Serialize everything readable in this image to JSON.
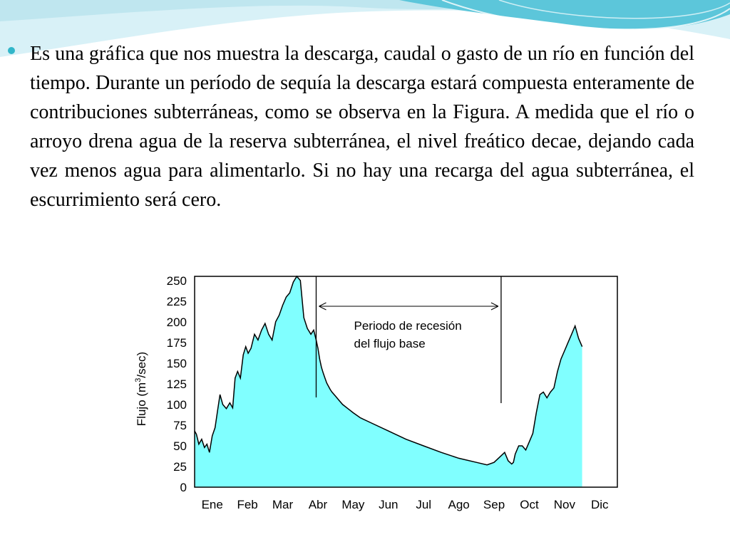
{
  "slide": {
    "theme_colors": {
      "wave_dark": "#5cc6da",
      "wave_light": "#cfeef5",
      "bullet": "#31b6c9"
    },
    "bullet_icon": "bullet-dot",
    "body_text": "Es una gráfica que nos muestra la descarga, caudal o gasto de un río en función del tiempo. Durante un período de sequía la descarga estará compuesta enteramente de contribuciones subterráneas, como se observa en la Figura. A medida que el río o arroyo drena agua de la reserva subterránea, el nivel freático decae, dejando cada vez menos agua para alimentarlo. Si no hay una recarga del agua subterránea, el escurrimiento será cero."
  },
  "chart_data": {
    "type": "area",
    "title": "",
    "ylabel_prefix": "Flujo (m",
    "ylabel_sup": "3",
    "ylabel_suffix": "/sec)",
    "xlabel": "",
    "categories": [
      "Ene",
      "Feb",
      "Mar",
      "Abr",
      "May",
      "Jun",
      "Jul",
      "Ago",
      "Sep",
      "Oct",
      "Nov",
      "Dic"
    ],
    "yticks": [
      0,
      25,
      50,
      75,
      100,
      125,
      150,
      175,
      200,
      225,
      250
    ],
    "ylim": [
      0,
      255
    ],
    "xlim": [
      0,
      12
    ],
    "fill_color": "#80ffff",
    "line_color": "#000000",
    "grid": false,
    "annotation_lines": [
      "Periodo de recesión",
      "del flujo base"
    ],
    "recession_period": {
      "start": 3.45,
      "end": 8.7
    },
    "series": [
      {
        "x": [
          0,
          0.05,
          0.12,
          0.2,
          0.28,
          0.35,
          0.42,
          0.5,
          0.58,
          0.65,
          0.72,
          0.8,
          0.9,
          1.0,
          1.08,
          1.15,
          1.22,
          1.3,
          1.38,
          1.45,
          1.52,
          1.6,
          1.7,
          1.8,
          1.9,
          2.0,
          2.1,
          2.2,
          2.3,
          2.4,
          2.5,
          2.6,
          2.7,
          2.8,
          2.9,
          3.0,
          3.1,
          3.2,
          3.3,
          3.38,
          3.45,
          3.5,
          3.55,
          3.6,
          3.65,
          3.7,
          3.75,
          3.8,
          3.85,
          3.9,
          4.0,
          4.1,
          4.2,
          4.35,
          4.5,
          4.7,
          5.0,
          5.5,
          6.0,
          6.5,
          7.0,
          7.5,
          8.0,
          8.3,
          8.5,
          8.7,
          8.8,
          8.9,
          9.0,
          9.05,
          9.1,
          9.2,
          9.3,
          9.4,
          9.5,
          9.6,
          9.7,
          9.8,
          9.9,
          10.0,
          10.1,
          10.2,
          10.3,
          10.4,
          10.5,
          10.6,
          10.7,
          10.8,
          10.9,
          11.0
        ],
        "values": [
          68,
          64,
          52,
          58,
          48,
          52,
          42,
          62,
          72,
          92,
          112,
          100,
          95,
          102,
          96,
          132,
          140,
          132,
          160,
          170,
          162,
          168,
          185,
          178,
          190,
          198,
          185,
          178,
          200,
          208,
          220,
          230,
          235,
          248,
          255,
          250,
          205,
          192,
          185,
          190,
          178,
          168,
          155,
          145,
          138,
          132,
          126,
          122,
          118,
          115,
          110,
          105,
          100,
          95,
          90,
          84,
          78,
          68,
          58,
          50,
          42,
          35,
          30,
          27,
          30,
          38,
          42,
          32,
          28,
          30,
          40,
          50,
          50,
          45,
          55,
          65,
          90,
          112,
          115,
          108,
          115,
          120,
          140,
          155,
          165,
          175,
          185,
          195,
          180,
          170
        ]
      }
    ]
  }
}
